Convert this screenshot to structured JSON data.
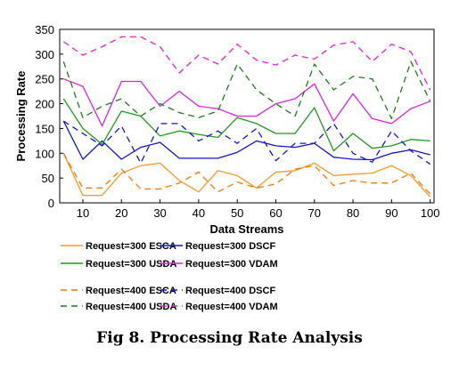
{
  "chart_data": {
    "type": "line",
    "title": "",
    "xlabel": "Data Streams",
    "ylabel": "Processing Rate",
    "xlim": [
      4,
      101
    ],
    "ylim": [
      0,
      350
    ],
    "xticks": [
      10,
      20,
      30,
      40,
      50,
      60,
      70,
      80,
      90,
      100
    ],
    "yticks": [
      0,
      50,
      100,
      150,
      200,
      250,
      300,
      350
    ],
    "grid": false,
    "legend_position": "bottom",
    "x": [
      5,
      10,
      15,
      20,
      25,
      30,
      35,
      40,
      45,
      50,
      55,
      60,
      65,
      70,
      75,
      80,
      85,
      90,
      95,
      100
    ],
    "series": [
      {
        "name": "Request=300 ESCA",
        "color": "#F59A23",
        "dashed": false,
        "values": [
          100,
          15,
          15,
          60,
          75,
          80,
          45,
          22,
          65,
          55,
          30,
          62,
          65,
          80,
          55,
          58,
          60,
          75,
          55,
          12
        ]
      },
      {
        "name": "Request=300 DSCF",
        "color": "#1515C8",
        "dashed": false,
        "values": [
          165,
          88,
          125,
          88,
          112,
          122,
          90,
          90,
          90,
          102,
          125,
          115,
          112,
          120,
          92,
          88,
          87,
          100,
          107,
          97
        ]
      },
      {
        "name": "Request=300 USDA",
        "color": "#1F9A1F",
        "dashed": false,
        "values": [
          210,
          150,
          118,
          185,
          175,
          135,
          145,
          138,
          132,
          172,
          160,
          140,
          140,
          192,
          105,
          140,
          110,
          115,
          128,
          125
        ]
      },
      {
        "name": "Request=300 VDAM",
        "color": "#E020E0",
        "dashed": false,
        "values": [
          250,
          235,
          155,
          245,
          245,
          195,
          225,
          195,
          190,
          175,
          175,
          200,
          210,
          240,
          165,
          220,
          170,
          160,
          190,
          205
        ]
      },
      {
        "name": "Request=400 ESCA",
        "color": "#F07A0A",
        "dashed": true,
        "values": [
          100,
          30,
          30,
          68,
          28,
          28,
          40,
          62,
          22,
          42,
          30,
          38,
          68,
          75,
          35,
          45,
          40,
          40,
          60,
          18
        ]
      },
      {
        "name": "Request=400 DSCF",
        "color": "#1515C8",
        "dashed": true,
        "values": [
          165,
          140,
          115,
          155,
          80,
          160,
          160,
          125,
          145,
          120,
          150,
          85,
          120,
          120,
          160,
          100,
          82,
          145,
          105,
          78
        ]
      },
      {
        "name": "Request=400 USDA",
        "color": "#1F7A1F",
        "dashed": true,
        "values": [
          285,
          172,
          195,
          210,
          175,
          200,
          182,
          172,
          185,
          280,
          228,
          200,
          175,
          280,
          228,
          255,
          250,
          170,
          285,
          205
        ]
      },
      {
        "name": "Request=400 VDAM",
        "color": "#E020E0",
        "dashed": true,
        "values": [
          325,
          298,
          315,
          335,
          335,
          315,
          262,
          298,
          280,
          320,
          288,
          278,
          298,
          290,
          318,
          325,
          285,
          320,
          305,
          228
        ]
      }
    ]
  },
  "caption": "Fig 8. Processing Rate Analysis"
}
